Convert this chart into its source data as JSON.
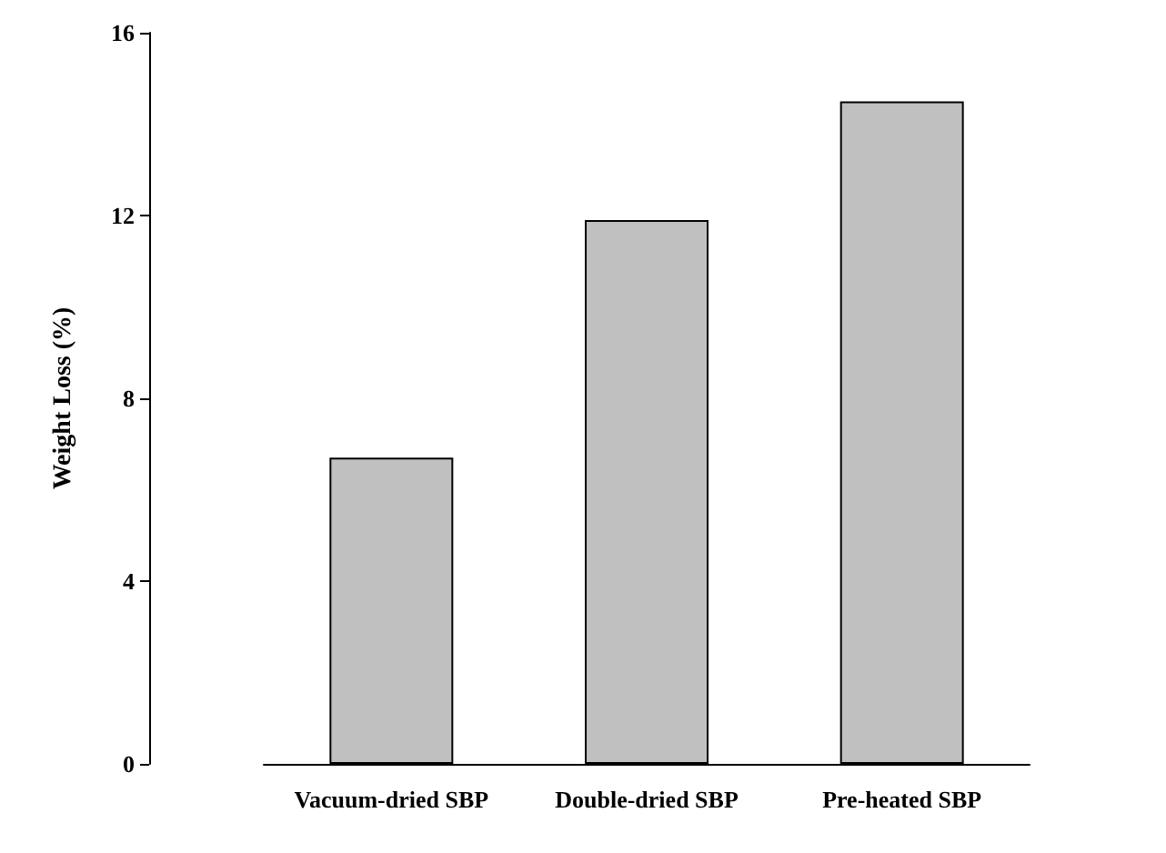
{
  "chart_data": {
    "type": "bar",
    "ylabel": "Weight Loss (%)",
    "categories": [
      "Vacuum-dried SBP",
      "Double-dried SBP",
      "Pre-heated SBP"
    ],
    "values": [
      6.7,
      11.9,
      14.5
    ],
    "color": "#c0c0c0",
    "ylim": [
      0,
      16
    ],
    "yticks": [
      0,
      4,
      8,
      12,
      16
    ],
    "grid": false
  }
}
